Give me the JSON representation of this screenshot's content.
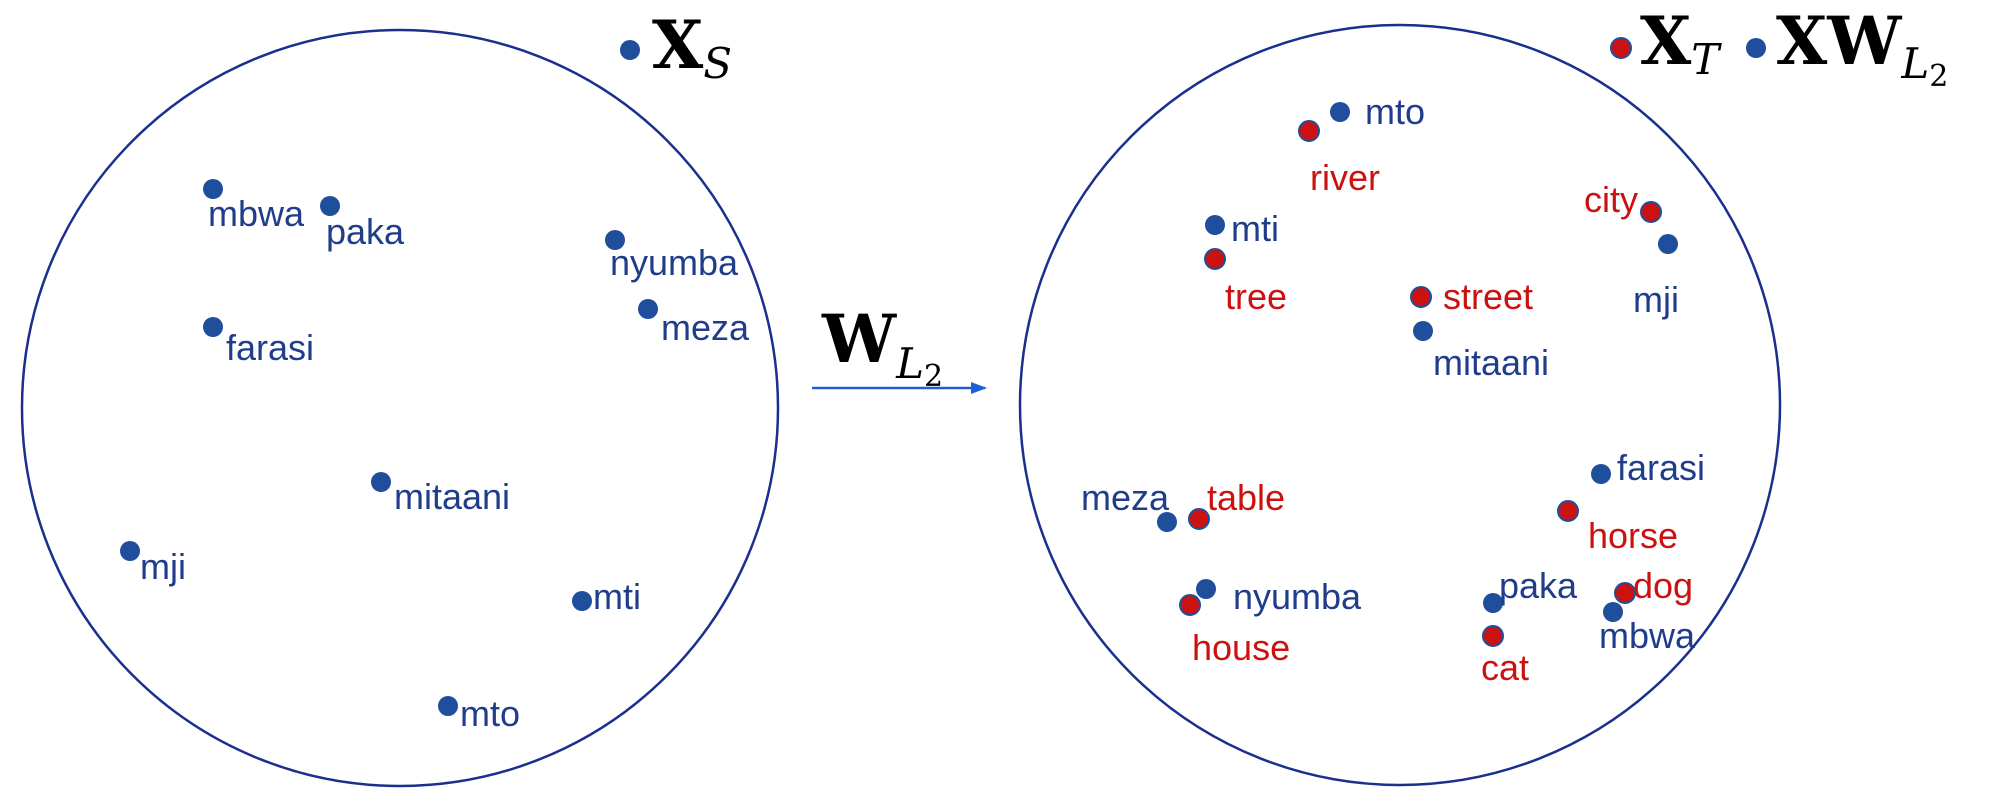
{
  "colors": {
    "source_point": "#1f4e9c",
    "source_text": "#1f3d8a",
    "target_point": "#cc1111",
    "circle_outline": "#1b2f8e",
    "arrow": "#1f5fd6"
  },
  "legend": {
    "source": {
      "main": "X",
      "sub": "S"
    },
    "target": {
      "main": "X",
      "sub": "T"
    },
    "mapped": {
      "main": "XW",
      "sub": "L",
      "subsub": "2"
    }
  },
  "transform": {
    "main": "W",
    "sub": "L",
    "subsub": "2"
  },
  "left_panel_words": [
    "mbwa",
    "paka",
    "nyumba",
    "meza",
    "farasi",
    "mitaani",
    "mji",
    "mti",
    "mto"
  ],
  "right_panel_mapped_words": [
    "mto",
    "mti",
    "mji",
    "mitaani",
    "farasi",
    "meza",
    "nyumba",
    "paka",
    "mbwa"
  ],
  "right_panel_target_words": [
    "river",
    "city",
    "tree",
    "street",
    "table",
    "horse",
    "house",
    "dog",
    "cat"
  ]
}
